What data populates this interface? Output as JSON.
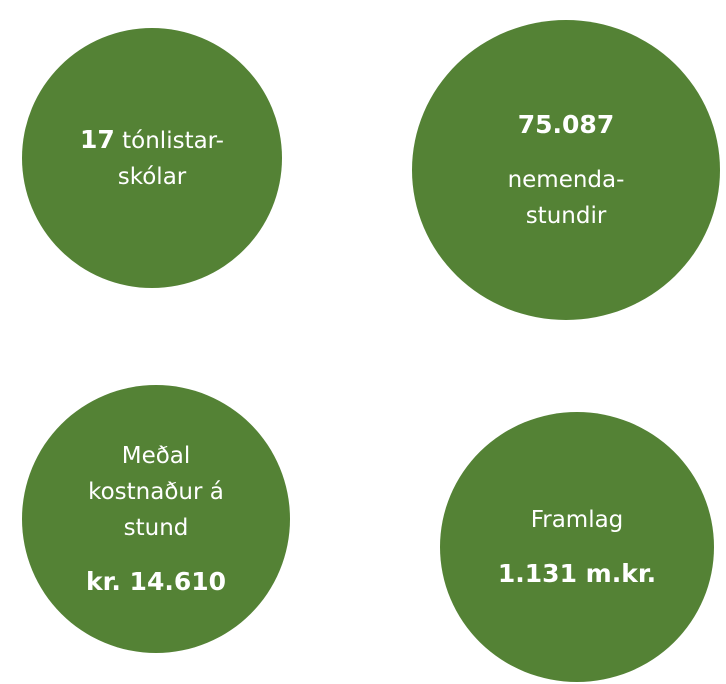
{
  "circles": [
    {
      "lines": [
        [
          {
            "text": "17",
            "bold": true
          },
          {
            "text": " tónlistar-",
            "bold": false
          }
        ],
        [
          {
            "text": "skólar",
            "bold": false
          }
        ]
      ]
    },
    {
      "lines": [
        [
          {
            "text": "75.087",
            "bold": true
          }
        ],
        [
          {
            "text": "nemenda-",
            "bold": false
          }
        ],
        [
          {
            "text": "stundir",
            "bold": false
          }
        ]
      ]
    },
    {
      "lines": [
        [
          {
            "text": "Meðal",
            "bold": false
          }
        ],
        [
          {
            "text": "kostnaður á",
            "bold": false
          }
        ],
        [
          {
            "text": "stund",
            "bold": false
          }
        ],
        [
          {
            "text": "kr. 14.610",
            "bold": true
          }
        ]
      ]
    },
    {
      "lines": [
        [
          {
            "text": "Framlag",
            "bold": false
          }
        ],
        [
          {
            "text": "1.131 m.kr.",
            "bold": true
          }
        ]
      ]
    }
  ]
}
